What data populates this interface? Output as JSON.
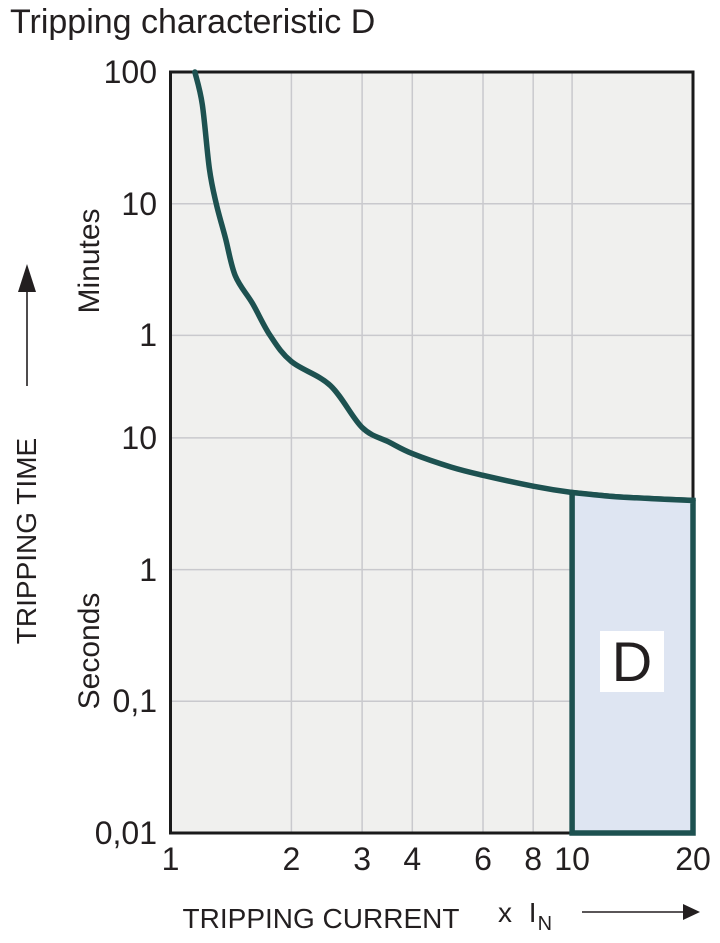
{
  "title": "Tripping characteristic D",
  "y_axis": {
    "title": "TRIPPING TIME",
    "unit_minutes": "Minutes",
    "unit_seconds": "Seconds"
  },
  "x_axis": {
    "title": "TRIPPING CURRENT",
    "unit_prefix": "x I",
    "unit_sub": "N"
  },
  "colors": {
    "text": "#231f20",
    "plot_bg": "#f0f0ee",
    "grid": "#c9c9cd",
    "border": "#1a1a1a",
    "curve": "#1d5150",
    "region_fill": "#dee5f2"
  },
  "chart_data": {
    "type": "line",
    "title": "Tripping characteristic D",
    "x_scale": "log",
    "y_scale": "log",
    "x_range": [
      1,
      20
    ],
    "y_range_seconds": [
      0.01,
      6000
    ],
    "xlabel": "TRIPPING CURRENT (x IN)",
    "ylabel": "TRIPPING TIME",
    "x_ticks": [
      {
        "v": 1,
        "label": "1"
      },
      {
        "v": 2,
        "label": "2"
      },
      {
        "v": 3,
        "label": "3"
      },
      {
        "v": 4,
        "label": "4"
      },
      {
        "v": 6,
        "label": "6"
      },
      {
        "v": 8,
        "label": "8"
      },
      {
        "v": 10,
        "label": "10"
      },
      {
        "v": 20,
        "label": "20"
      }
    ],
    "y_ticks": [
      {
        "t": 6000,
        "label": "100",
        "unit": "minutes"
      },
      {
        "t": 600,
        "label": "10",
        "unit": "minutes"
      },
      {
        "t": 60,
        "label": "1",
        "unit": "minutes"
      },
      {
        "t": 10,
        "label": "10",
        "unit": "seconds"
      },
      {
        "t": 1,
        "label": "1",
        "unit": "seconds"
      },
      {
        "t": 0.1,
        "label": "0,1",
        "unit": "seconds"
      },
      {
        "t": 0.01,
        "label": "0,01",
        "unit": "seconds"
      }
    ],
    "grid_x": [
      2,
      3,
      4,
      6,
      8,
      10
    ],
    "grid_t": [
      600,
      60,
      10,
      1,
      0.1
    ],
    "series": [
      {
        "name": "tripping-time-curve",
        "color": "#1d5150",
        "points_x_multiple_of_In_vs_seconds": true,
        "points": [
          [
            1.15,
            6000
          ],
          [
            1.2,
            3400
          ],
          [
            1.25,
            1100
          ],
          [
            1.3,
            600
          ],
          [
            1.37,
            330
          ],
          [
            1.45,
            170
          ],
          [
            1.6,
            105
          ],
          [
            1.77,
            60
          ],
          [
            2.0,
            38
          ],
          [
            2.5,
            25
          ],
          [
            3.0,
            12
          ],
          [
            3.5,
            9.3
          ],
          [
            4.0,
            7.6
          ],
          [
            5.0,
            6.0
          ],
          [
            6.0,
            5.2
          ],
          [
            8.0,
            4.3
          ],
          [
            10.0,
            3.85
          ],
          [
            12.5,
            3.6
          ],
          [
            16.0,
            3.45
          ],
          [
            20.0,
            3.35
          ]
        ]
      }
    ],
    "region": {
      "label": "D",
      "x_from": 10,
      "x_to": 20,
      "t_bottom": 0.01,
      "fill": "#dee5f2",
      "stroke": "#1d5150"
    },
    "legend": "none",
    "grid": "on"
  }
}
